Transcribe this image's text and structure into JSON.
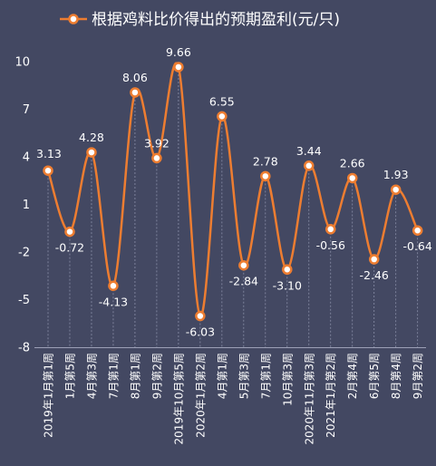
{
  "chart_data": {
    "type": "line",
    "legend": "根据鸡料比价得出的预期盈利(元/只)",
    "legend_position": "top",
    "colors": {
      "background": "#434862",
      "line": "#ED7D31",
      "marker_fill": "#FFFFFF",
      "text": "#FFFFFF",
      "drop_lines": "#8A8FA8"
    },
    "grid": false,
    "ylim": [
      -8,
      10
    ],
    "yticks": [
      -8,
      -5,
      -2,
      1,
      4,
      7,
      10
    ],
    "categories": [
      "2019年1月第1周",
      "1月第5周",
      "4月第3周",
      "7月第1周",
      "8月第1周",
      "9月第2周",
      "2019年10月第5周",
      "2020年1月第2周",
      "4月第1周",
      "5月第3周",
      "7月第1周",
      "10月第3周",
      "2020年11月第3周",
      "2021年1月第2周",
      "2月第4周",
      "6月第5周",
      "8月第4周",
      "9月第2周"
    ],
    "series": [
      {
        "name": "根据鸡料比价得出的预期盈利(元/只)",
        "values": [
          3.13,
          -0.72,
          4.28,
          -4.13,
          8.06,
          3.92,
          9.66,
          -6.03,
          6.55,
          -2.84,
          2.78,
          -3.1,
          3.44,
          -0.56,
          2.66,
          -2.46,
          1.93,
          -0.64
        ],
        "labels": [
          "3.13",
          "-0.72",
          "4.28",
          "-4.13",
          "8.06",
          "3.92",
          "9.66",
          "-6.03",
          "6.55",
          "-2.84",
          "2.78",
          "-3.10",
          "3.44",
          "-0.56",
          "2.66",
          "-2.46",
          "1.93",
          "-0.64"
        ]
      }
    ]
  }
}
